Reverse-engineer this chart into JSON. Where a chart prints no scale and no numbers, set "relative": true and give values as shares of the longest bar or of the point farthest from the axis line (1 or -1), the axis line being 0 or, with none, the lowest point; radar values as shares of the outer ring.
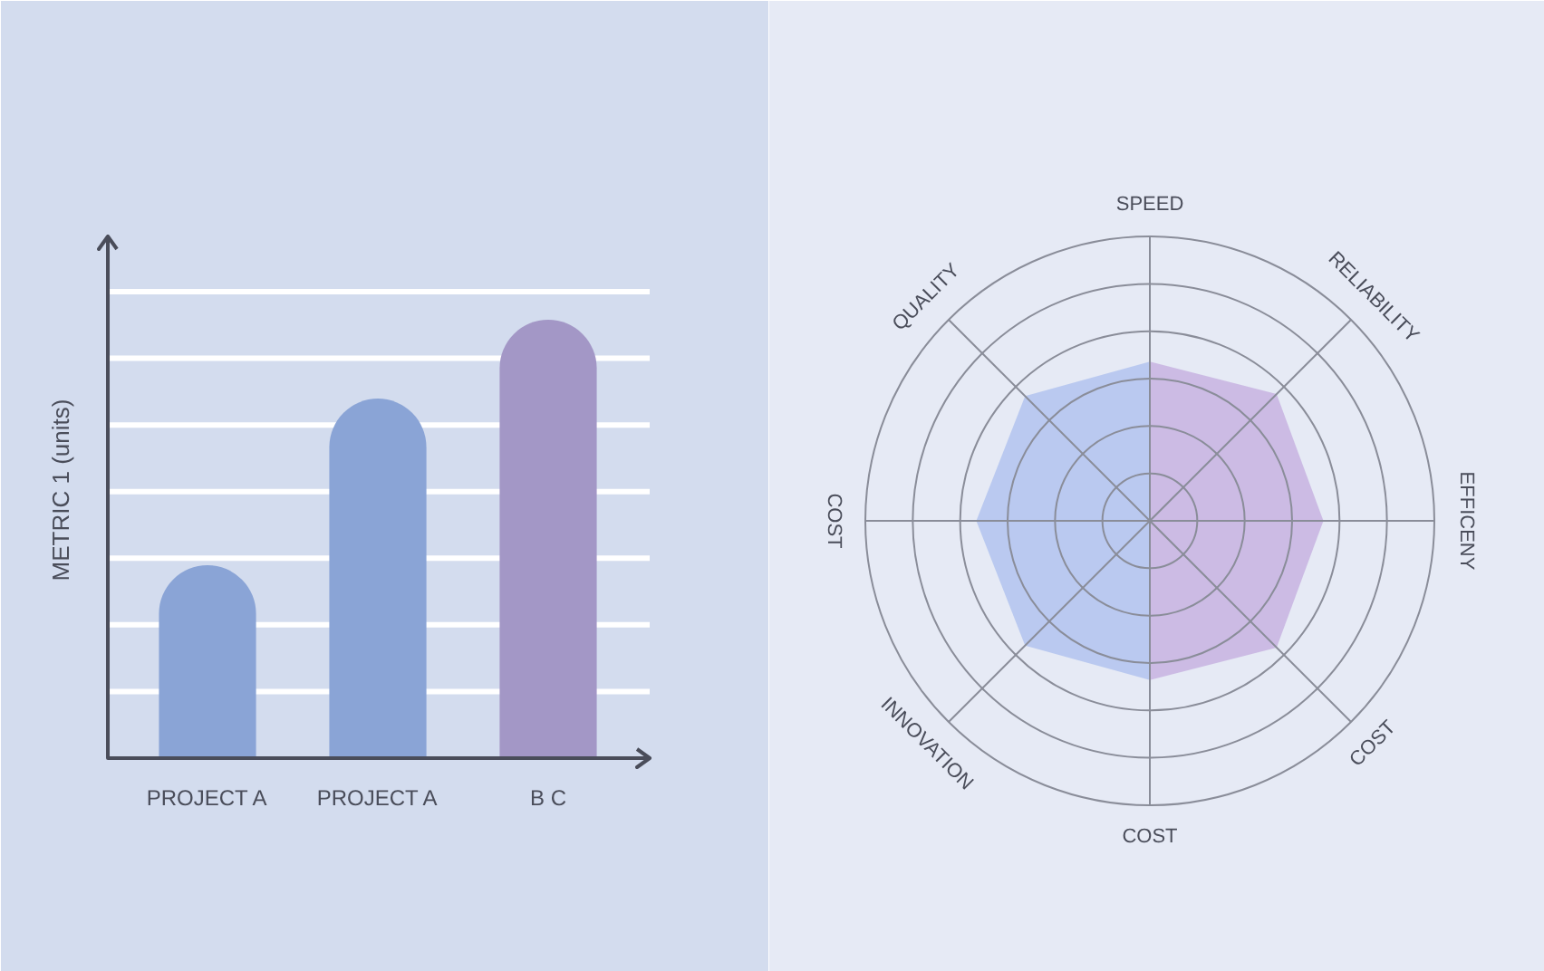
{
  "chart_data": [
    {
      "type": "bar",
      "ylabel": "METRIC 1 (units)",
      "categories": [
        "PROJECT A",
        "PROJECT A",
        "B C"
      ],
      "values": [
        0.44,
        0.82,
        1
      ],
      "colors": [
        "#8aa4d6",
        "#8aa4d6",
        "#a397c6"
      ],
      "relative": true,
      "grid": "y"
    },
    {
      "type": "radar",
      "categories": [
        "SPEED",
        "RELIABILITY",
        "EFFICENY",
        "COST",
        "COST",
        "INNOVATION",
        "COST",
        "QUALITY"
      ],
      "relative": true,
      "series": [
        {
          "color": "#b2c3ee",
          "values": [
            0.56,
            null,
            null,
            null,
            0.56,
            0.62,
            0.61,
            0.62
          ]
        },
        {
          "color": "#c7b3e0",
          "values": [
            0.56,
            0.63,
            0.61,
            0.63,
            0.56,
            null,
            null,
            null
          ]
        }
      ]
    }
  ]
}
